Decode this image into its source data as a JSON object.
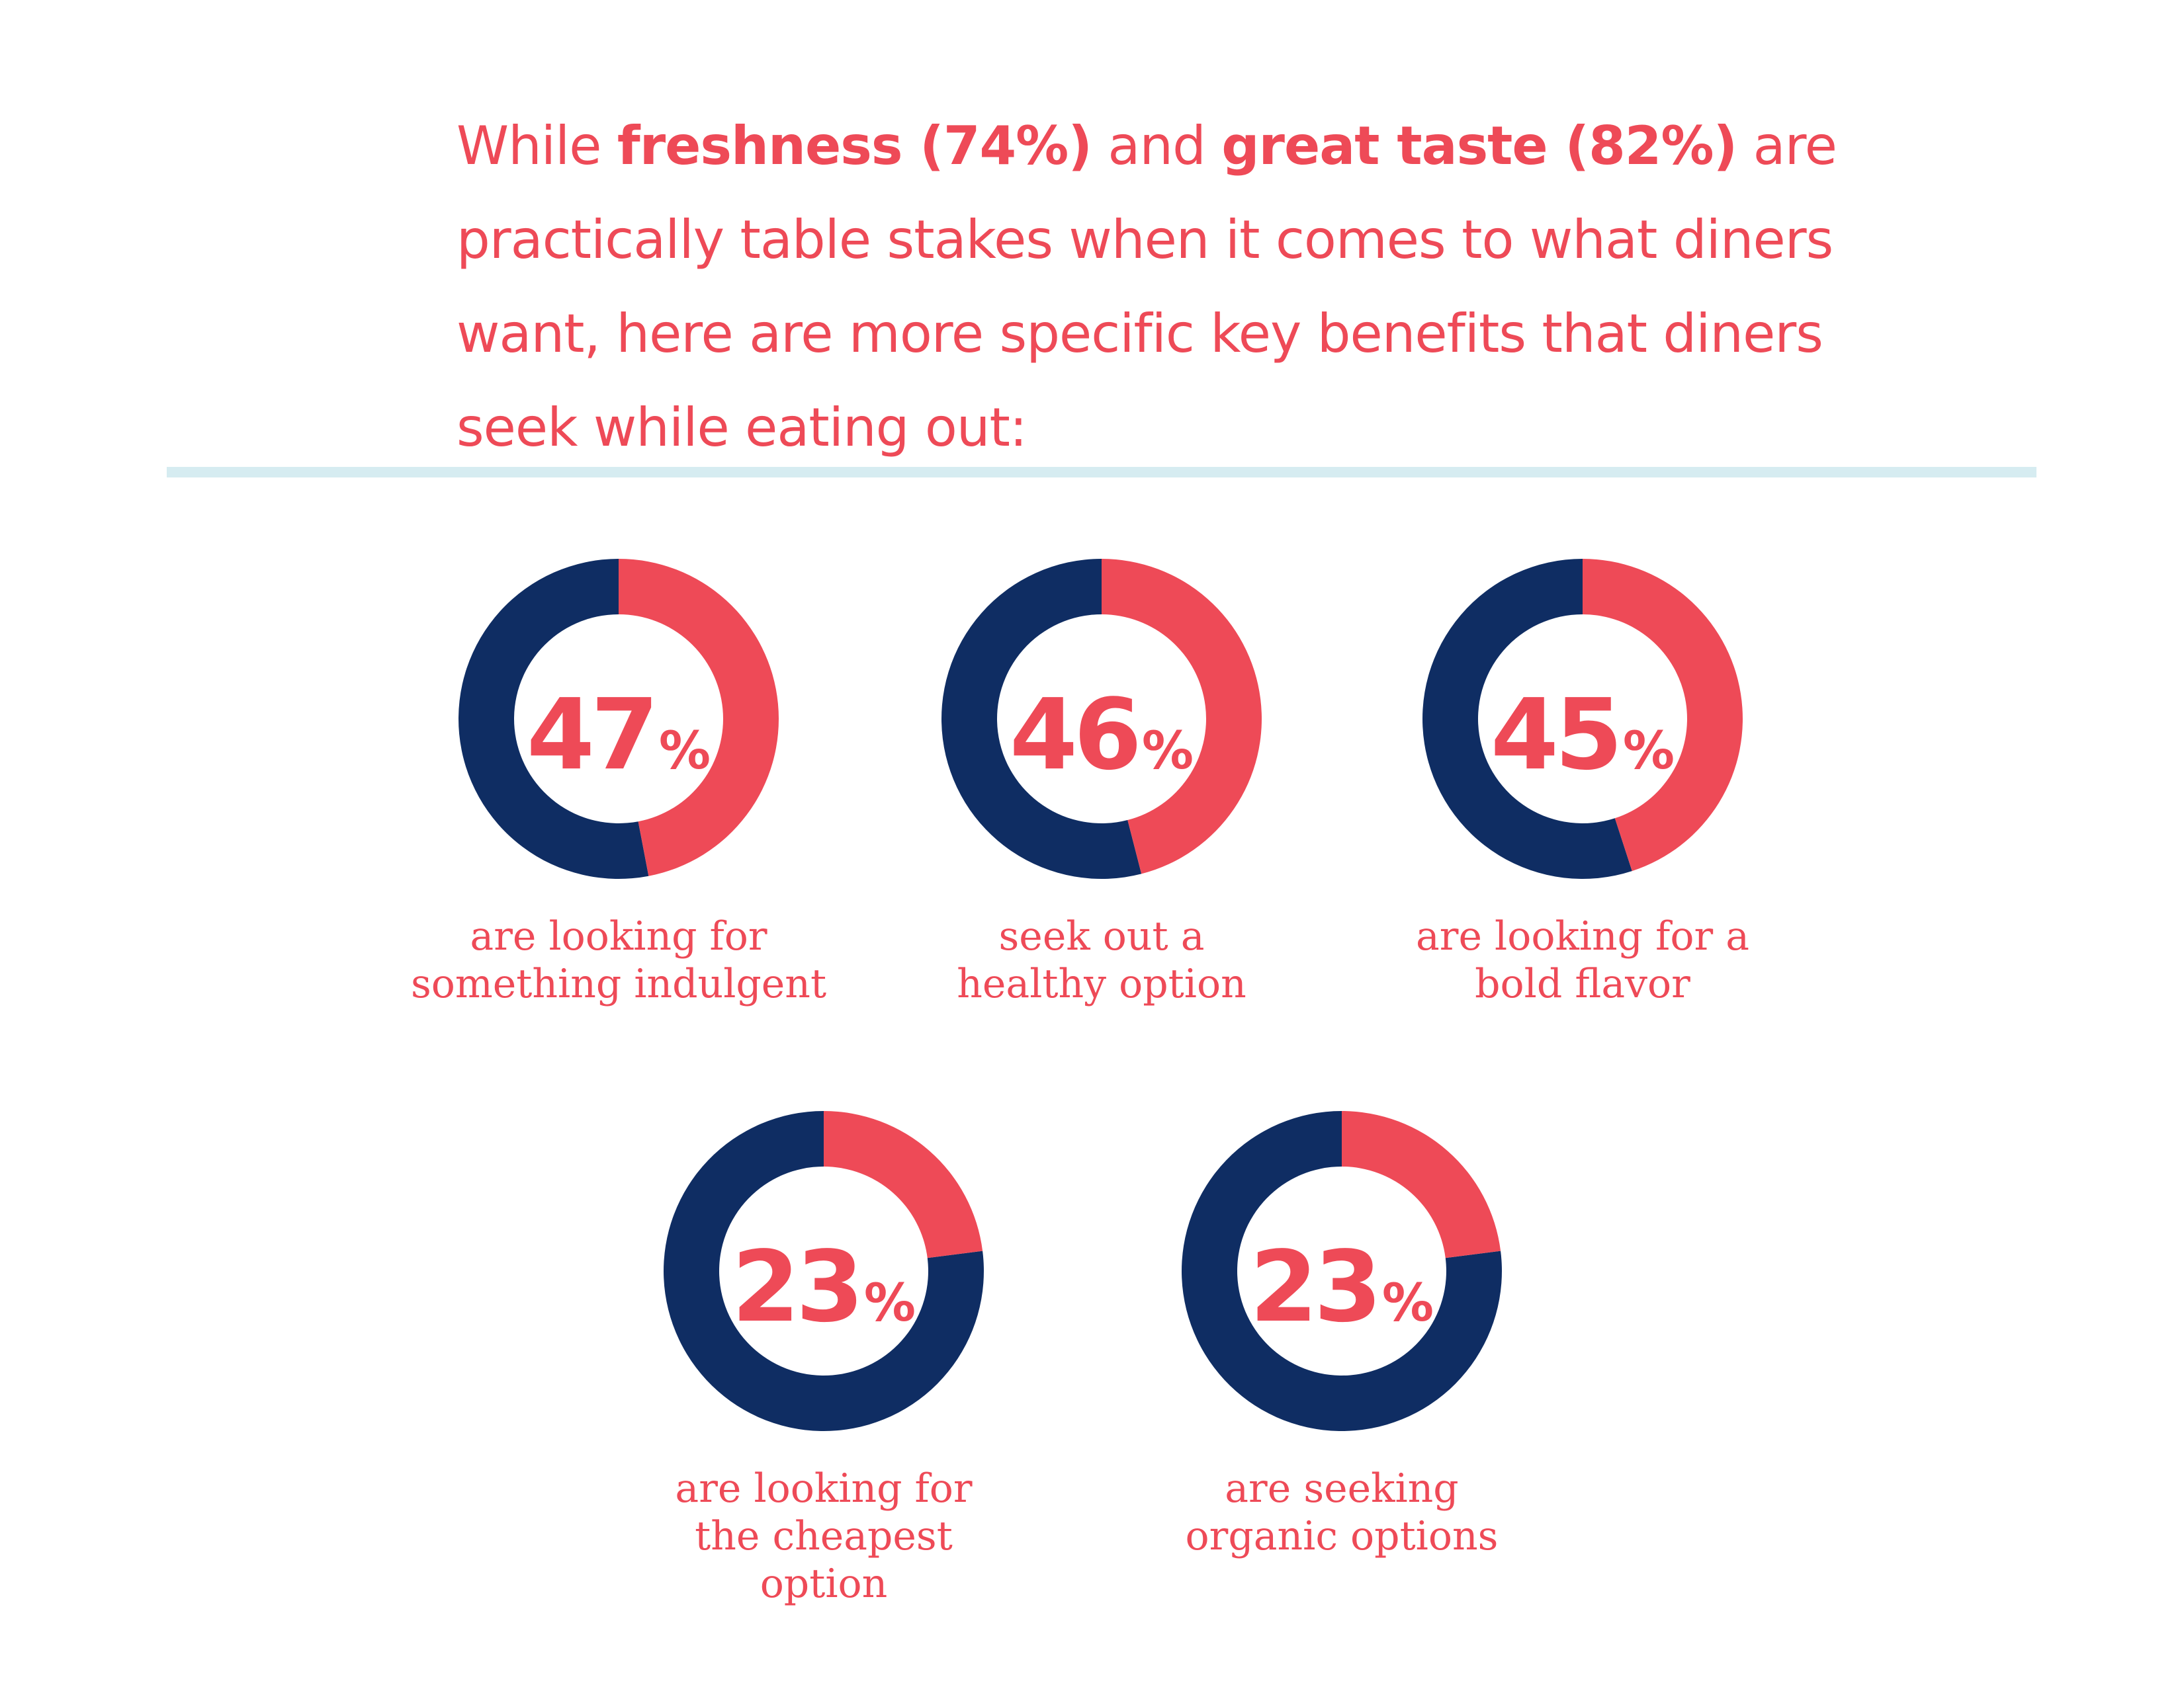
{
  "intro": {
    "part1": "While ",
    "bold1": "freshness (74%)",
    "part2": " and ",
    "bold2": "great taste (82%)",
    "part3": " are practically table stakes when it comes to what diners want, here are more specific key benefits that diners seek while eating out:"
  },
  "colors": {
    "accent": "#ee4a57",
    "primary": "#0f2d63",
    "divider": "#d6ecf1",
    "background": "#ffffff"
  },
  "chart_data": [
    {
      "type": "pie",
      "value": 47,
      "value_label": "47",
      "unit": "%",
      "caption_lines": [
        "are looking for",
        "something indulgent"
      ]
    },
    {
      "type": "pie",
      "value": 46,
      "value_label": "46",
      "unit": "%",
      "caption_lines": [
        "seek out a",
        "healthy option"
      ]
    },
    {
      "type": "pie",
      "value": 45,
      "value_label": "45",
      "unit": "%",
      "caption_lines": [
        "are looking for a",
        "bold flavor"
      ]
    },
    {
      "type": "pie",
      "value": 23,
      "value_label": "23",
      "unit": "%",
      "caption_lines": [
        "are looking for",
        "the cheapest",
        "option"
      ]
    },
    {
      "type": "pie",
      "value": 23,
      "value_label": "23",
      "unit": "%",
      "caption_lines": [
        "are seeking",
        "organic options"
      ]
    }
  ]
}
